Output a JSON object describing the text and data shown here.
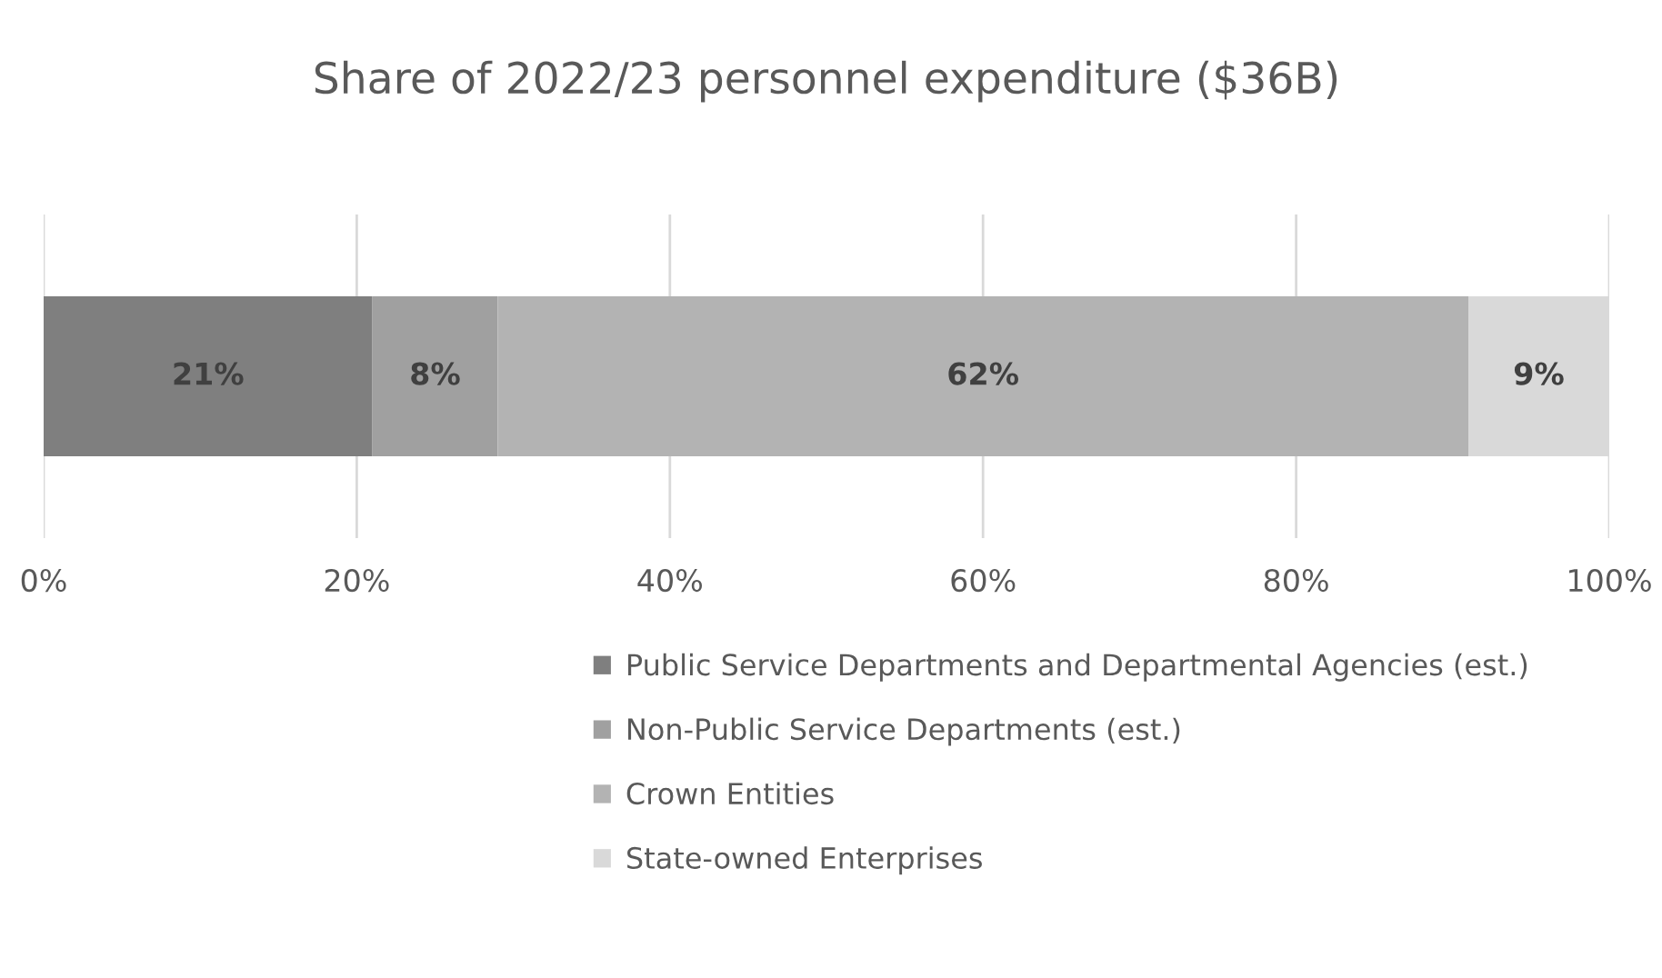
{
  "chart_data": {
    "type": "bar",
    "orientation": "horizontal",
    "stacked": true,
    "title": "Share of 2022/23 personnel expenditure ($36B)",
    "categories": [
      null
    ],
    "series": [
      {
        "name": "Public Service Departments and Departmental Agencies (est.)",
        "color": "#7f7f7f",
        "values": [
          21
        ],
        "value_labels": [
          "21%"
        ]
      },
      {
        "name": "Non-Public Service Departments (est.)",
        "color": "#a0a0a0",
        "values": [
          8
        ],
        "value_labels": [
          "8%"
        ]
      },
      {
        "name": "Crown Entities",
        "color": "#b3b3b3",
        "values": [
          62
        ],
        "value_labels": [
          "62%"
        ]
      },
      {
        "name": "State-owned Enterprises",
        "color": "#d9d9d9",
        "values": [
          9
        ],
        "value_labels": [
          "9%"
        ]
      }
    ],
    "xlim": [
      0,
      100
    ],
    "xticks": [
      {
        "value": 0,
        "label": "0%"
      },
      {
        "value": 20,
        "label": "20%"
      },
      {
        "value": 40,
        "label": "40%"
      },
      {
        "value": 60,
        "label": "60%"
      },
      {
        "value": 80,
        "label": "80%"
      },
      {
        "value": 100,
        "label": "100%"
      }
    ],
    "grid": "x",
    "legend": "bottom"
  }
}
